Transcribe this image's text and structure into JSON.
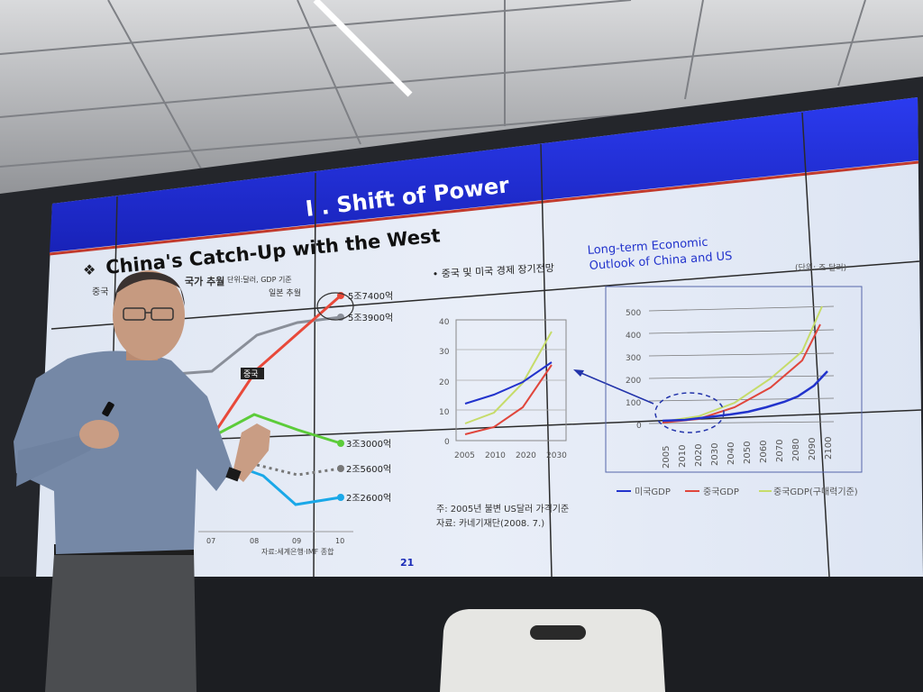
{
  "slide": {
    "header_title": "I . Shift of Power",
    "title": "China's Catch-Up with the West",
    "left_chart": {
      "subtitle_a": "중국",
      "subtitle_b": "국가 추월",
      "unit": "단위:달러, GDP 기준",
      "japan_label": "일본 추월",
      "china_tag": "중국",
      "end_labels": [
        "5조7400억",
        "5조3900억",
        "3조3000억",
        "2조5600억",
        "2조2600억"
      ],
      "x_ticks": [
        "07",
        "08",
        "09",
        "10"
      ],
      "source": "자료:세계은행·IMF 종합",
      "colors": {
        "china": "#e8493a",
        "japan": "#8a8f99",
        "green": "#5ccc3a",
        "blue": "#1aa8e8",
        "gray_dotted": "#777777"
      }
    },
    "middle_chart": {
      "bullet": "• 중국 및 미국 경제 장기전망",
      "y_ticks": [
        "40",
        "30",
        "20",
        "10",
        "0"
      ],
      "x_ticks": [
        "2005",
        "2010",
        "2020",
        "2030"
      ],
      "note": "주: 2005년 불변 US달러 가격기준",
      "source": "자료: 카네기재단(2008. 7.)"
    },
    "right_chart": {
      "annotation": "Long-term Economic Outlook of China and US",
      "annotation_line1": "Long-term Economic",
      "annotation_line2": "Outlook of China and US",
      "unit": "(단위: 조 달러)",
      "y_ticks": [
        "500",
        "400",
        "300",
        "200",
        "100",
        "0"
      ],
      "x_ticks": [
        "2005",
        "2010",
        "2020",
        "2030",
        "2040",
        "2050",
        "2060",
        "2070",
        "2080",
        "2090",
        "2100"
      ],
      "legend": [
        "미국GDP",
        "중국GDP",
        "중국GDP(구매력기준)"
      ],
      "colors": {
        "us": "#2233cc",
        "china": "#e0463c",
        "china_ppp": "#c6dc6a"
      }
    },
    "page_number": "21",
    "colors": {
      "header": "#1d2fd6",
      "accent_line": "#c23a2c",
      "page_number": "#1a2bb8"
    }
  }
}
